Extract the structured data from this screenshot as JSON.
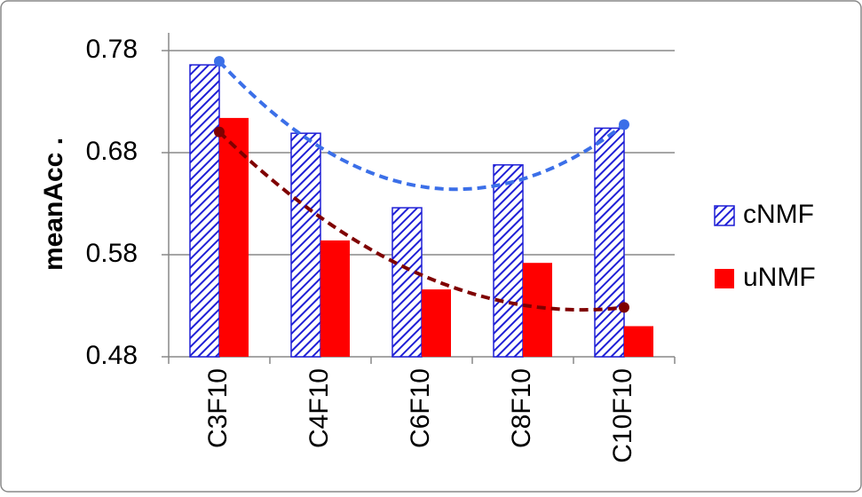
{
  "chart_data": {
    "type": "bar",
    "y_label": "meanAcc .",
    "categories": [
      "C3F10",
      "C4F10",
      "C6F10",
      "C8F10",
      "C10F10"
    ],
    "series": [
      {
        "name": "cNMF",
        "color": "#1f1fd6",
        "pattern": "hatch",
        "trend_color": "#3b6fe8",
        "values": [
          0.766,
          0.699,
          0.626,
          0.668,
          0.704
        ]
      },
      {
        "name": "uNMF",
        "color": "#ff0000",
        "pattern": "solid",
        "trend_color": "#7f0000",
        "values": [
          0.714,
          0.594,
          0.546,
          0.572,
          0.51
        ]
      }
    ],
    "trendline": "polynomial",
    "ylim": [
      0.48,
      0.78
    ],
    "yticks": [
      0.48,
      0.58,
      0.68,
      0.78
    ],
    "grid": true,
    "legend": "right"
  }
}
